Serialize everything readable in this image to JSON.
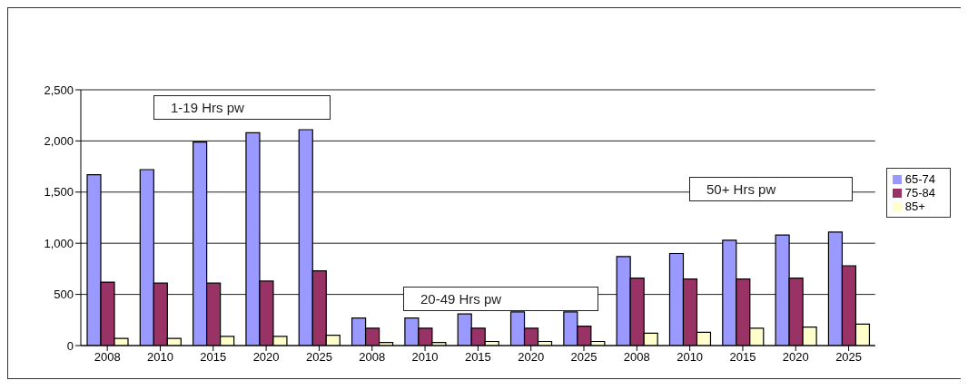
{
  "chart_data": {
    "type": "bar",
    "categories": [
      "2008",
      "2010",
      "2015",
      "2020",
      "2025",
      "2008",
      "2010",
      "2015",
      "2020",
      "2025",
      "2008",
      "2010",
      "2015",
      "2020",
      "2025"
    ],
    "series": [
      {
        "name": "65-74",
        "color": "#9999ff",
        "values": [
          1670,
          1720,
          1990,
          2080,
          2110,
          270,
          270,
          310,
          330,
          330,
          870,
          900,
          1030,
          1080,
          1110
        ]
      },
      {
        "name": "75-84",
        "color": "#993366",
        "values": [
          620,
          610,
          610,
          630,
          730,
          170,
          170,
          170,
          170,
          190,
          660,
          650,
          650,
          660,
          780
        ]
      },
      {
        "name": "85+",
        "color": "#ffffcc",
        "values": [
          70,
          70,
          90,
          90,
          100,
          30,
          30,
          40,
          40,
          40,
          120,
          130,
          170,
          180,
          210
        ]
      }
    ],
    "ylim": [
      0,
      2500
    ],
    "yticks": [
      {
        "value": 0,
        "label": "0"
      },
      {
        "value": 500,
        "label": "500"
      },
      {
        "value": 1000,
        "label": "1,000"
      },
      {
        "value": 1500,
        "label": "1,500"
      },
      {
        "value": 2000,
        "label": "2,000"
      },
      {
        "value": 2500,
        "label": "2,500"
      }
    ],
    "grid": "y",
    "legend": "right",
    "annotations": [
      "1-19 Hrs pw",
      "20-49 Hrs pw",
      "50+ Hrs pw"
    ]
  }
}
